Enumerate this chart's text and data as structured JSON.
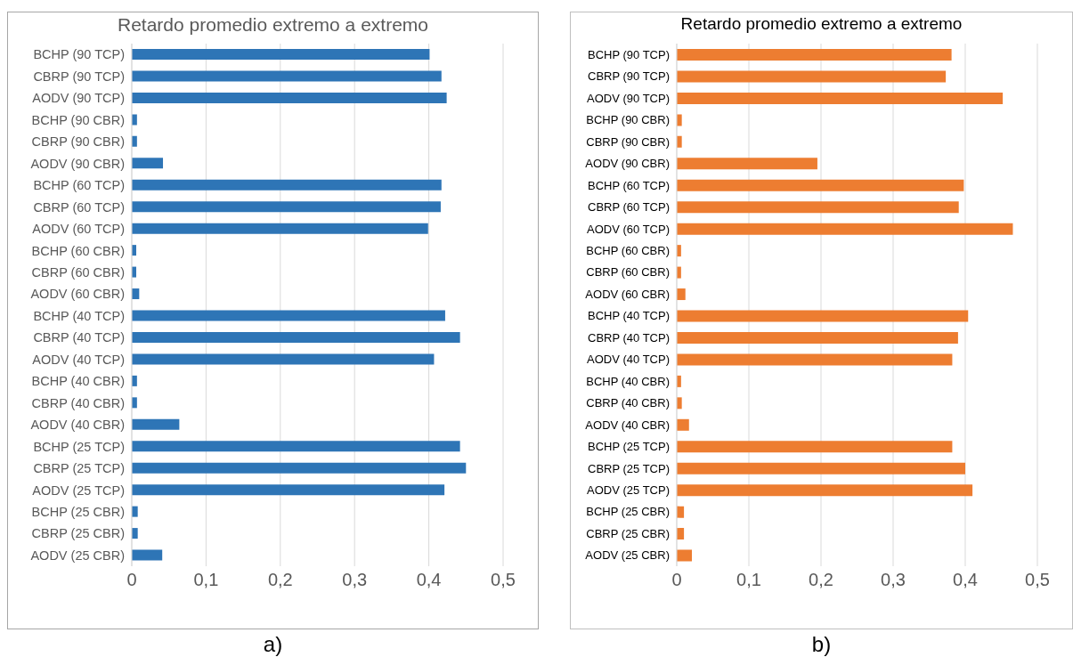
{
  "chart_data": [
    {
      "type": "bar",
      "orientation": "horizontal",
      "title": "Retardo promedio extremo a extremo",
      "categories": [
        "BCHP (90 TCP)",
        "CBRP (90 TCP)",
        "AODV (90 TCP)",
        "BCHP (90 CBR)",
        "CBRP (90 CBR)",
        "AODV (90 CBR)",
        "BCHP (60 TCP)",
        "CBRP (60 TCP)",
        "AODV (60 TCP)",
        "BCHP (60 CBR)",
        "CBRP (60 CBR)",
        "AODV (60 CBR)",
        "BCHP (40 TCP)",
        "CBRP (40 TCP)",
        "AODV (40 TCP)",
        "BCHP (40 CBR)",
        "CBRP (40 CBR)",
        "AODV (40 CBR)",
        "BCHP (25 TCP)",
        "CBRP (25 TCP)",
        "AODV (25 TCP)",
        "BCHP (25 CBR)",
        "CBRP (25 CBR)",
        "AODV (25 CBR)"
      ],
      "values": [
        0.401,
        0.417,
        0.424,
        0.007,
        0.007,
        0.042,
        0.417,
        0.416,
        0.399,
        0.006,
        0.006,
        0.01,
        0.422,
        0.442,
        0.407,
        0.007,
        0.007,
        0.064,
        0.442,
        0.45,
        0.421,
        0.008,
        0.008,
        0.041
      ],
      "color": "#2e75b6",
      "xlim": [
        0,
        0.5
      ],
      "xticks": [
        0,
        {
          "value": 0.1,
          "label": "0,1"
        },
        {
          "value": 0.2,
          "label": "0,2"
        },
        {
          "value": 0.3,
          "label": "0,3"
        },
        {
          "value": 0.4,
          "label": "0,4"
        },
        {
          "value": 0.5,
          "label": "0,5"
        }
      ],
      "grid": "x",
      "annotations": [
        "a)"
      ]
    },
    {
      "type": "bar",
      "orientation": "horizontal",
      "title": "Retardo promedio extremo a extremo",
      "categories": [
        "BCHP (90 TCP)",
        "CBRP (90 TCP)",
        "AODV (90 TCP)",
        "BCHP (90 CBR)",
        "CBRP (90 CBR)",
        "AODV (90 CBR)",
        "BCHP (60 TCP)",
        "CBRP (60 TCP)",
        "AODV (60 TCP)",
        "BCHP (60 CBR)",
        "CBRP (60 CBR)",
        "AODV (60 CBR)",
        "BCHP (40 TCP)",
        "CBRP (40 TCP)",
        "AODV (40 TCP)",
        "BCHP (40 CBR)",
        "CBRP (40 CBR)",
        "AODV (40 CBR)",
        "BCHP (25 TCP)",
        "CBRP (25 TCP)",
        "AODV (25 TCP)",
        "BCHP (25 CBR)",
        "CBRP (25 CBR)",
        "AODV (25 CBR)"
      ],
      "values": [
        0.381,
        0.373,
        0.452,
        0.007,
        0.007,
        0.195,
        0.398,
        0.391,
        0.466,
        0.006,
        0.006,
        0.012,
        0.404,
        0.39,
        0.382,
        0.006,
        0.007,
        0.017,
        0.382,
        0.4,
        0.41,
        0.01,
        0.01,
        0.021
      ],
      "color": "#ed7d31",
      "xlim": [
        0,
        0.5
      ],
      "xticks": [
        0,
        {
          "value": 0.1,
          "label": "0,1"
        },
        {
          "value": 0.2,
          "label": "0,2"
        },
        {
          "value": 0.3,
          "label": "0,3"
        },
        {
          "value": 0.4,
          "label": "0,4"
        },
        {
          "value": 0.5,
          "label": "0,5"
        }
      ],
      "grid": "x",
      "annotations": [
        "b)"
      ]
    }
  ]
}
